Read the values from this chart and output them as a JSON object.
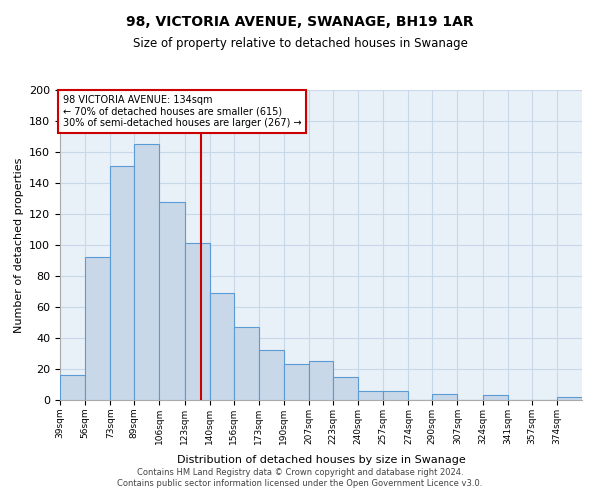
{
  "title": "98, VICTORIA AVENUE, SWANAGE, BH19 1AR",
  "subtitle": "Size of property relative to detached houses in Swanage",
  "xlabel": "Distribution of detached houses by size in Swanage",
  "ylabel": "Number of detached properties",
  "bin_labels": [
    "39sqm",
    "56sqm",
    "73sqm",
    "89sqm",
    "106sqm",
    "123sqm",
    "140sqm",
    "156sqm",
    "173sqm",
    "190sqm",
    "207sqm",
    "223sqm",
    "240sqm",
    "257sqm",
    "274sqm",
    "290sqm",
    "307sqm",
    "324sqm",
    "341sqm",
    "357sqm",
    "374sqm"
  ],
  "bar_values": [
    16,
    92,
    151,
    165,
    128,
    101,
    69,
    47,
    32,
    23,
    25,
    15,
    6,
    6,
    0,
    4,
    0,
    3,
    0,
    0,
    2
  ],
  "bar_color": "#c8d8e8",
  "bar_edge_color": "#5b9bd5",
  "vline_x": 134,
  "bin_edges_values": [
    39,
    56,
    73,
    89,
    106,
    123,
    140,
    156,
    173,
    190,
    207,
    223,
    240,
    257,
    274,
    290,
    307,
    324,
    341,
    357,
    374,
    391
  ],
  "ylim": [
    0,
    200
  ],
  "yticks": [
    0,
    20,
    40,
    60,
    80,
    100,
    120,
    140,
    160,
    180,
    200
  ],
  "annotation_title": "98 VICTORIA AVENUE: 134sqm",
  "annotation_line1": "← 70% of detached houses are smaller (615)",
  "annotation_line2": "30% of semi-detached houses are larger (267) →",
  "annotation_box_color": "#ffffff",
  "annotation_box_edge": "#cc0000",
  "vline_color": "#cc0000",
  "grid_color": "#c8d8e8",
  "background_color": "#e8f0f8",
  "footer_line1": "Contains HM Land Registry data © Crown copyright and database right 2024.",
  "footer_line2": "Contains public sector information licensed under the Open Government Licence v3.0."
}
